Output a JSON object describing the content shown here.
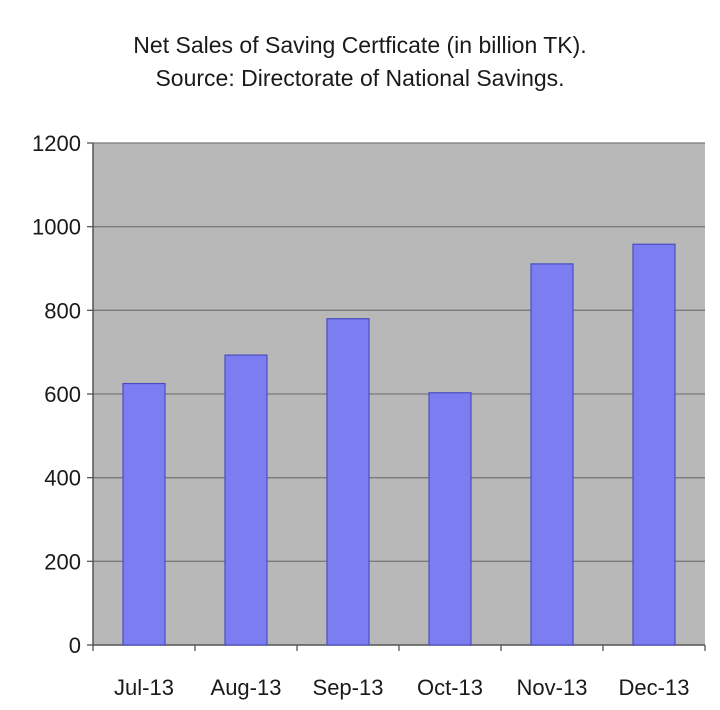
{
  "chart_data": {
    "type": "bar",
    "title": "Net Sales of Saving Certficate (in billion TK).",
    "subtitle": "Source: Directorate of National Savings.",
    "categories": [
      "Jul-13",
      "Aug-13",
      "Sep-13",
      "Oct-13",
      "Nov-13",
      "Dec-13"
    ],
    "series": [
      {
        "values": [
          625,
          693,
          780,
          603,
          911,
          958
        ]
      }
    ],
    "xlabel": "",
    "ylabel": "",
    "ylim": [
      0,
      1200
    ],
    "yticks": [
      "0",
      "200",
      "400",
      "600",
      "800",
      "1000",
      "1200"
    ],
    "grid": true,
    "legend": "none"
  },
  "colors": {
    "bar_fill": "#7b7df0",
    "bar_edge": "#4a4cc0",
    "plot_background": "#b8b8b8",
    "gridline": "#7a7a7a",
    "axis": "#555555"
  }
}
